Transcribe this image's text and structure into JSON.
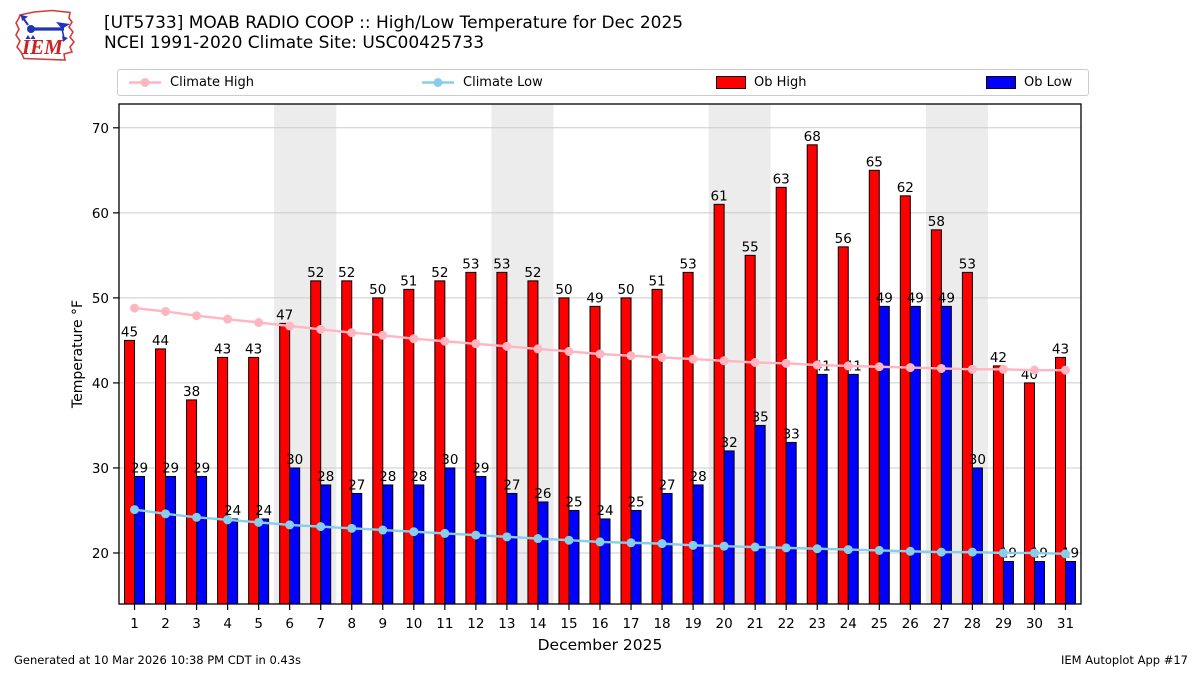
{
  "header": {
    "logo_text": "IEM",
    "title_line1": "[UT5733] MOAB RADIO COOP :: High/Low Temperature for Dec 2025",
    "title_line2": "NCEI 1991-2020 Climate Site: USC00425733"
  },
  "legend": {
    "items": [
      {
        "label": "Climate High",
        "type": "line",
        "color": "#ffb6c1"
      },
      {
        "label": "Climate Low",
        "type": "line",
        "color": "#87ceeb"
      },
      {
        "label": "Ob High",
        "type": "patch",
        "color": "#ff0000"
      },
      {
        "label": "Ob Low",
        "type": "patch",
        "color": "#0000ff"
      }
    ]
  },
  "chart_data": {
    "type": "bar",
    "title": "[UT5733] MOAB RADIO COOP :: High/Low Temperature for Dec 2025",
    "subtitle": "NCEI 1991-2020 Climate Site: USC00425733",
    "xlabel": "December 2025",
    "ylabel": "Temperature °F",
    "x": [
      1,
      2,
      3,
      4,
      5,
      6,
      7,
      8,
      9,
      10,
      11,
      12,
      13,
      14,
      15,
      16,
      17,
      18,
      19,
      20,
      21,
      22,
      23,
      24,
      25,
      26,
      27,
      28,
      29,
      30,
      31
    ],
    "series": [
      {
        "name": "Ob High",
        "type": "bar",
        "color": "#ff0000",
        "values": [
          45,
          44,
          38,
          43,
          43,
          47,
          52,
          52,
          50,
          51,
          52,
          53,
          53,
          52,
          50,
          49,
          50,
          51,
          53,
          61,
          55,
          63,
          68,
          56,
          65,
          62,
          58,
          53,
          42,
          40,
          43
        ]
      },
      {
        "name": "Ob Low",
        "type": "bar",
        "color": "#0000ff",
        "values": [
          29,
          29,
          29,
          24,
          24,
          30,
          28,
          27,
          28,
          28,
          30,
          29,
          27,
          26,
          25,
          24,
          25,
          27,
          28,
          32,
          35,
          33,
          41,
          41,
          49,
          49,
          49,
          30,
          19,
          19,
          19
        ]
      },
      {
        "name": "Climate High",
        "type": "line",
        "color": "#ffb6c1",
        "values": [
          48.8,
          48.4,
          47.9,
          47.5,
          47.1,
          46.7,
          46.3,
          45.9,
          45.6,
          45.2,
          44.9,
          44.6,
          44.3,
          44.0,
          43.7,
          43.4,
          43.2,
          43.0,
          42.8,
          42.6,
          42.4,
          42.3,
          42.1,
          42.0,
          41.9,
          41.8,
          41.7,
          41.6,
          41.6,
          41.5,
          41.5
        ]
      },
      {
        "name": "Climate Low",
        "type": "line",
        "color": "#87ceeb",
        "values": [
          25.1,
          24.6,
          24.2,
          23.9,
          23.6,
          23.3,
          23.1,
          22.9,
          22.7,
          22.5,
          22.3,
          22.1,
          21.9,
          21.7,
          21.5,
          21.3,
          21.2,
          21.1,
          20.9,
          20.8,
          20.7,
          20.6,
          20.5,
          20.4,
          20.3,
          20.2,
          20.1,
          20.1,
          20.0,
          20.0,
          19.9
        ]
      }
    ],
    "ylim": [
      14,
      72.8
    ],
    "yticks": [
      20,
      30,
      40,
      50,
      60,
      70
    ],
    "grid": true,
    "grid_color": "#cccccc",
    "legend_position": "top",
    "weekend_bands": [
      [
        6,
        7
      ],
      [
        13,
        14
      ],
      [
        20,
        21
      ],
      [
        27,
        28
      ]
    ],
    "band_color": "#ececec",
    "bar_edge_color": "#000000",
    "value_labels": true
  },
  "footer": {
    "left": "Generated at 10 Mar 2026 10:38 PM CDT in 0.43s",
    "right": "IEM Autoplot App #17"
  }
}
